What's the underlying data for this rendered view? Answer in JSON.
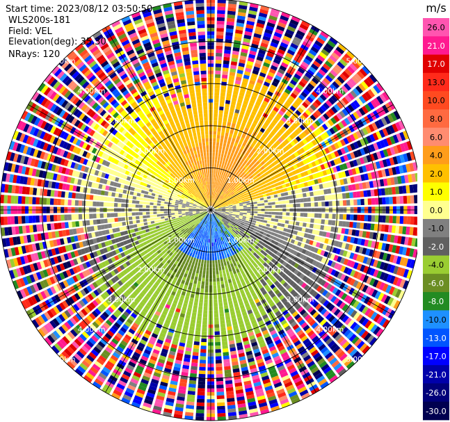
{
  "header": {
    "start_time": "Start time: 2023/08/12 03:50:50",
    "instrument": "WLS200s-181",
    "field": "Field: VEL",
    "elevation": "Elevation(deg): 35.30",
    "nrays": "NRays: 120"
  },
  "chart_data": {
    "type": "heatmap",
    "projection": "polar-ppi",
    "field": "VEL",
    "units": "m/s",
    "n_rays": 120,
    "range_rings_km": [
      1.0,
      2.0,
      3.0,
      4.0,
      5.0
    ],
    "ring_labels": [
      "1.00km",
      "2.00km",
      "3.00km",
      "4.00km",
      "5.00km"
    ],
    "max_range_km": 5.0,
    "azimuth_lines_deg": [
      0,
      30,
      60,
      90,
      120,
      150,
      180,
      210,
      240,
      270,
      300,
      330
    ],
    "colorbar": {
      "unit_label": "m/s",
      "tick_labels": [
        "26.0",
        "21.0",
        "17.0",
        "13.0",
        "10.0",
        "8.0",
        "6.0",
        "4.0",
        "2.0",
        "1.0",
        "0.0",
        "-1.0",
        "-2.0",
        "-4.0",
        "-6.0",
        "-8.0",
        "-10.0",
        "-13.0",
        "-17.0",
        "-21.0",
        "-26.0",
        "-30.0"
      ],
      "bands": [
        {
          "color": "#ff55b0",
          "from": 26,
          "to": 30
        },
        {
          "color": "#ff1a90",
          "from": 21,
          "to": 26
        },
        {
          "color": "#e00000",
          "from": 17,
          "to": 21
        },
        {
          "color": "#ff2a1a",
          "from": 13,
          "to": 17
        },
        {
          "color": "#ff4a20",
          "from": 10,
          "to": 13
        },
        {
          "color": "#ff6a40",
          "from": 8,
          "to": 10
        },
        {
          "color": "#ff8c70",
          "from": 6,
          "to": 8
        },
        {
          "color": "#ff9d1a",
          "from": 4,
          "to": 6
        },
        {
          "color": "#ffc000",
          "from": 2,
          "to": 4
        },
        {
          "color": "#ffff00",
          "from": 1,
          "to": 2
        },
        {
          "color": "#ffff90",
          "from": 0,
          "to": 1
        },
        {
          "color": "#808080",
          "from": -1,
          "to": 0
        },
        {
          "color": "#606060",
          "from": -2,
          "to": -1
        },
        {
          "color": "#9acd32",
          "from": -4,
          "to": -2
        },
        {
          "color": "#6b8e23",
          "from": -6,
          "to": -4
        },
        {
          "color": "#228b22",
          "from": -8,
          "to": -6
        },
        {
          "color": "#1e90ff",
          "from": -10,
          "to": -8
        },
        {
          "color": "#0055ff",
          "from": -13,
          "to": -10
        },
        {
          "color": "#0000ff",
          "from": -17,
          "to": -13
        },
        {
          "color": "#0000aa",
          "from": -21,
          "to": -17
        },
        {
          "color": "#00007a",
          "from": -26,
          "to": -21
        },
        {
          "color": "#000050",
          "from": -30,
          "to": -26
        }
      ]
    },
    "pattern": {
      "toward_lidar_sector_deg": [
        110,
        250
      ],
      "away_sector_deg": [
        290,
        70
      ],
      "noise_beyond_km": 3.3
    }
  }
}
